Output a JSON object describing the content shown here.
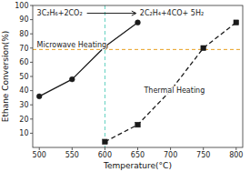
{
  "chart_data": {
    "type": "line",
    "xlabel": "Temperature(°C)",
    "ylabel": "Ethane Conversion(%)",
    "series": [
      {
        "name": "Microwave Heating",
        "color": "#1a1a1a",
        "marker": "circle",
        "line_style": "solid",
        "x": [
          500,
          550,
          600,
          650
        ],
        "values": [
          36,
          48,
          71,
          88
        ]
      },
      {
        "name": "Thermal Heating",
        "color": "#1a1a1a",
        "marker": "square",
        "line_style": "dashed",
        "x": [
          600,
          650,
          700,
          750,
          800
        ],
        "values": [
          4,
          16,
          40,
          70,
          88
        ]
      }
    ],
    "reference_lines": [
      {
        "axis": "y",
        "value": 69,
        "color": "#e8a020",
        "line_style": "dashed"
      },
      {
        "axis": "x",
        "value": 600,
        "color": "#5ecfbf",
        "line_style": "dashed"
      }
    ],
    "annotations": [
      {
        "text": "3C₂H₆+2CO₂"
      },
      {
        "text": "2C₂H₄+4CO+ 5H₂"
      }
    ],
    "xlim": [
      490,
      810
    ],
    "ylim": [
      0,
      100
    ],
    "xticks": [
      500,
      550,
      600,
      650,
      700,
      750,
      800
    ],
    "yticks": [
      10,
      20,
      30,
      40,
      50,
      60,
      70,
      80,
      90,
      100
    ],
    "grid": false
  }
}
